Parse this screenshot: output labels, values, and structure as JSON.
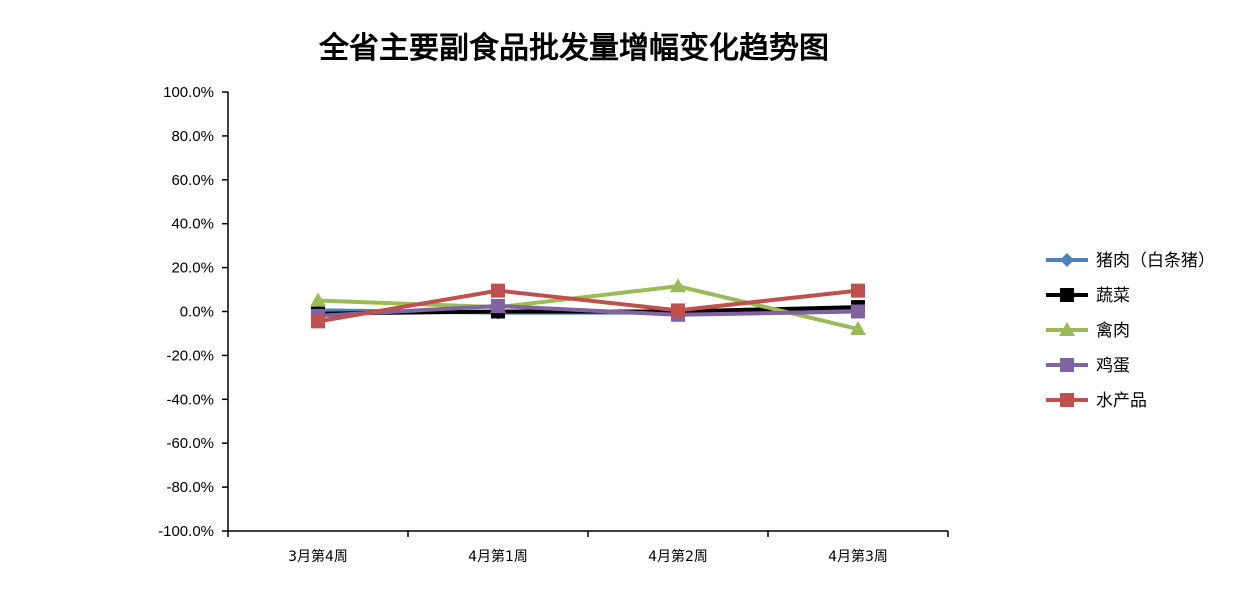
{
  "chart_data": {
    "type": "line",
    "title": "全省主要副食品批发量增幅变化趋势图",
    "xlabel": "",
    "ylabel": "",
    "categories": [
      "3月第4周",
      "4月第1周",
      "4月第2周",
      "4月第3周"
    ],
    "ylim": [
      -100,
      100
    ],
    "ytick_step": 20,
    "ytick_labels": [
      "100.0%",
      "80.0%",
      "60.0%",
      "40.0%",
      "20.0%",
      "0.0%",
      "-20.0%",
      "-40.0%",
      "-60.0%",
      "-80.0%",
      "-100.0%"
    ],
    "grid": false,
    "legend_position": "right",
    "series": [
      {
        "name": "猪肉（白条猪）",
        "values": [
          0.5,
          -0.5,
          -0.5,
          0.5
        ],
        "color": "#4F81BD",
        "marker": "diamond"
      },
      {
        "name": "蔬菜",
        "values": [
          -1.0,
          0.0,
          0.0,
          2.0
        ],
        "color": "#000000",
        "marker": "square"
      },
      {
        "name": "禽肉",
        "values": [
          5.0,
          2.0,
          11.5,
          -8.0
        ],
        "color": "#9BBB59",
        "marker": "triangle"
      },
      {
        "name": "鸡蛋",
        "values": [
          -2.0,
          2.5,
          -1.5,
          0.0
        ],
        "color": "#8064A2",
        "marker": "square"
      },
      {
        "name": "水产品",
        "values": [
          -4.5,
          9.5,
          0.5,
          9.5
        ],
        "color": "#C0504D",
        "marker": "square"
      }
    ]
  }
}
